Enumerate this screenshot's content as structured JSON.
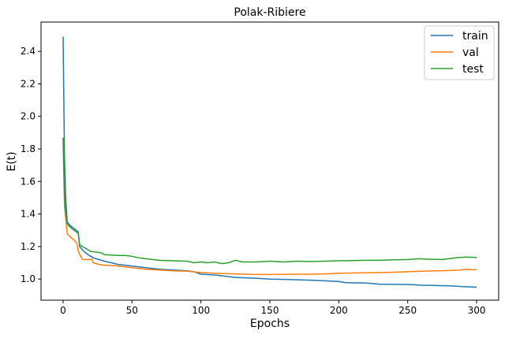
{
  "chart_data": {
    "type": "line",
    "title": "Polak-Ribiere",
    "xlabel": "Epochs",
    "ylabel": "E(t)",
    "xlim": [
      -16,
      316
    ],
    "ylim": [
      0.87,
      2.58
    ],
    "xticks": [
      0,
      50,
      100,
      150,
      200,
      250,
      300
    ],
    "yticks": [
      1.0,
      1.2,
      1.4,
      1.6,
      1.8,
      2.0,
      2.2,
      2.4
    ],
    "ytick_labels": [
      "1.0",
      "1.2",
      "1.4",
      "1.6",
      "1.8",
      "2.0",
      "2.2",
      "2.4"
    ],
    "grid": false,
    "legend_position": "top-right",
    "series": [
      {
        "name": "train",
        "color": "#1f77b4",
        "points": [
          [
            0,
            2.49
          ],
          [
            1,
            1.75
          ],
          [
            2,
            1.48
          ],
          [
            3,
            1.35
          ],
          [
            5,
            1.33
          ],
          [
            8,
            1.31
          ],
          [
            11,
            1.29
          ],
          [
            12,
            1.2
          ],
          [
            15,
            1.17
          ],
          [
            18,
            1.15
          ],
          [
            22,
            1.13
          ],
          [
            26,
            1.12
          ],
          [
            30,
            1.11
          ],
          [
            35,
            1.1
          ],
          [
            40,
            1.09
          ],
          [
            45,
            1.085
          ],
          [
            50,
            1.08
          ],
          [
            55,
            1.075
          ],
          [
            60,
            1.07
          ],
          [
            65,
            1.065
          ],
          [
            70,
            1.06
          ],
          [
            80,
            1.055
          ],
          [
            90,
            1.05
          ],
          [
            95,
            1.045
          ],
          [
            100,
            1.03
          ],
          [
            110,
            1.025
          ],
          [
            120,
            1.015
          ],
          [
            125,
            1.01
          ],
          [
            140,
            1.005
          ],
          [
            150,
            1.0
          ],
          [
            160,
            0.998
          ],
          [
            180,
            0.993
          ],
          [
            200,
            0.985
          ],
          [
            205,
            0.978
          ],
          [
            220,
            0.975
          ],
          [
            230,
            0.968
          ],
          [
            250,
            0.967
          ],
          [
            260,
            0.962
          ],
          [
            280,
            0.958
          ],
          [
            290,
            0.954
          ],
          [
            300,
            0.95
          ]
        ]
      },
      {
        "name": "val",
        "color": "#ff7f0e",
        "points": [
          [
            0,
            1.86
          ],
          [
            1,
            1.45
          ],
          [
            2,
            1.37
          ],
          [
            3,
            1.28
          ],
          [
            5,
            1.26
          ],
          [
            8,
            1.24
          ],
          [
            10,
            1.22
          ],
          [
            11,
            1.17
          ],
          [
            14,
            1.12
          ],
          [
            18,
            1.12
          ],
          [
            21,
            1.12
          ],
          [
            22,
            1.1
          ],
          [
            26,
            1.09
          ],
          [
            30,
            1.085
          ],
          [
            40,
            1.08
          ],
          [
            50,
            1.07
          ],
          [
            60,
            1.06
          ],
          [
            70,
            1.055
          ],
          [
            80,
            1.05
          ],
          [
            90,
            1.048
          ],
          [
            100,
            1.04
          ],
          [
            110,
            1.035
          ],
          [
            120,
            1.033
          ],
          [
            130,
            1.03
          ],
          [
            140,
            1.028
          ],
          [
            150,
            1.028
          ],
          [
            160,
            1.029
          ],
          [
            170,
            1.03
          ],
          [
            180,
            1.03
          ],
          [
            190,
            1.032
          ],
          [
            200,
            1.035
          ],
          [
            210,
            1.037
          ],
          [
            220,
            1.038
          ],
          [
            230,
            1.04
          ],
          [
            240,
            1.042
          ],
          [
            250,
            1.045
          ],
          [
            260,
            1.048
          ],
          [
            270,
            1.05
          ],
          [
            280,
            1.052
          ],
          [
            288,
            1.055
          ],
          [
            292,
            1.06
          ],
          [
            296,
            1.058
          ],
          [
            300,
            1.057
          ]
        ]
      },
      {
        "name": "test",
        "color": "#2ca02c",
        "points": [
          [
            0,
            1.87
          ],
          [
            1,
            1.52
          ],
          [
            2,
            1.4
          ],
          [
            3,
            1.34
          ],
          [
            5,
            1.32
          ],
          [
            8,
            1.3
          ],
          [
            11,
            1.28
          ],
          [
            12,
            1.21
          ],
          [
            16,
            1.19
          ],
          [
            20,
            1.17
          ],
          [
            25,
            1.165
          ],
          [
            28,
            1.16
          ],
          [
            30,
            1.15
          ],
          [
            40,
            1.145
          ],
          [
            45,
            1.145
          ],
          [
            50,
            1.14
          ],
          [
            55,
            1.13
          ],
          [
            60,
            1.125
          ],
          [
            70,
            1.115
          ],
          [
            80,
            1.112
          ],
          [
            90,
            1.11
          ],
          [
            95,
            1.1
          ],
          [
            100,
            1.105
          ],
          [
            105,
            1.1
          ],
          [
            110,
            1.105
          ],
          [
            115,
            1.095
          ],
          [
            120,
            1.1
          ],
          [
            125,
            1.115
          ],
          [
            130,
            1.105
          ],
          [
            140,
            1.105
          ],
          [
            150,
            1.11
          ],
          [
            160,
            1.105
          ],
          [
            170,
            1.11
          ],
          [
            180,
            1.108
          ],
          [
            190,
            1.11
          ],
          [
            200,
            1.112
          ],
          [
            210,
            1.113
          ],
          [
            220,
            1.115
          ],
          [
            230,
            1.115
          ],
          [
            240,
            1.118
          ],
          [
            250,
            1.12
          ],
          [
            258,
            1.125
          ],
          [
            265,
            1.122
          ],
          [
            275,
            1.12
          ],
          [
            285,
            1.13
          ],
          [
            292,
            1.135
          ],
          [
            300,
            1.133
          ]
        ]
      }
    ]
  }
}
